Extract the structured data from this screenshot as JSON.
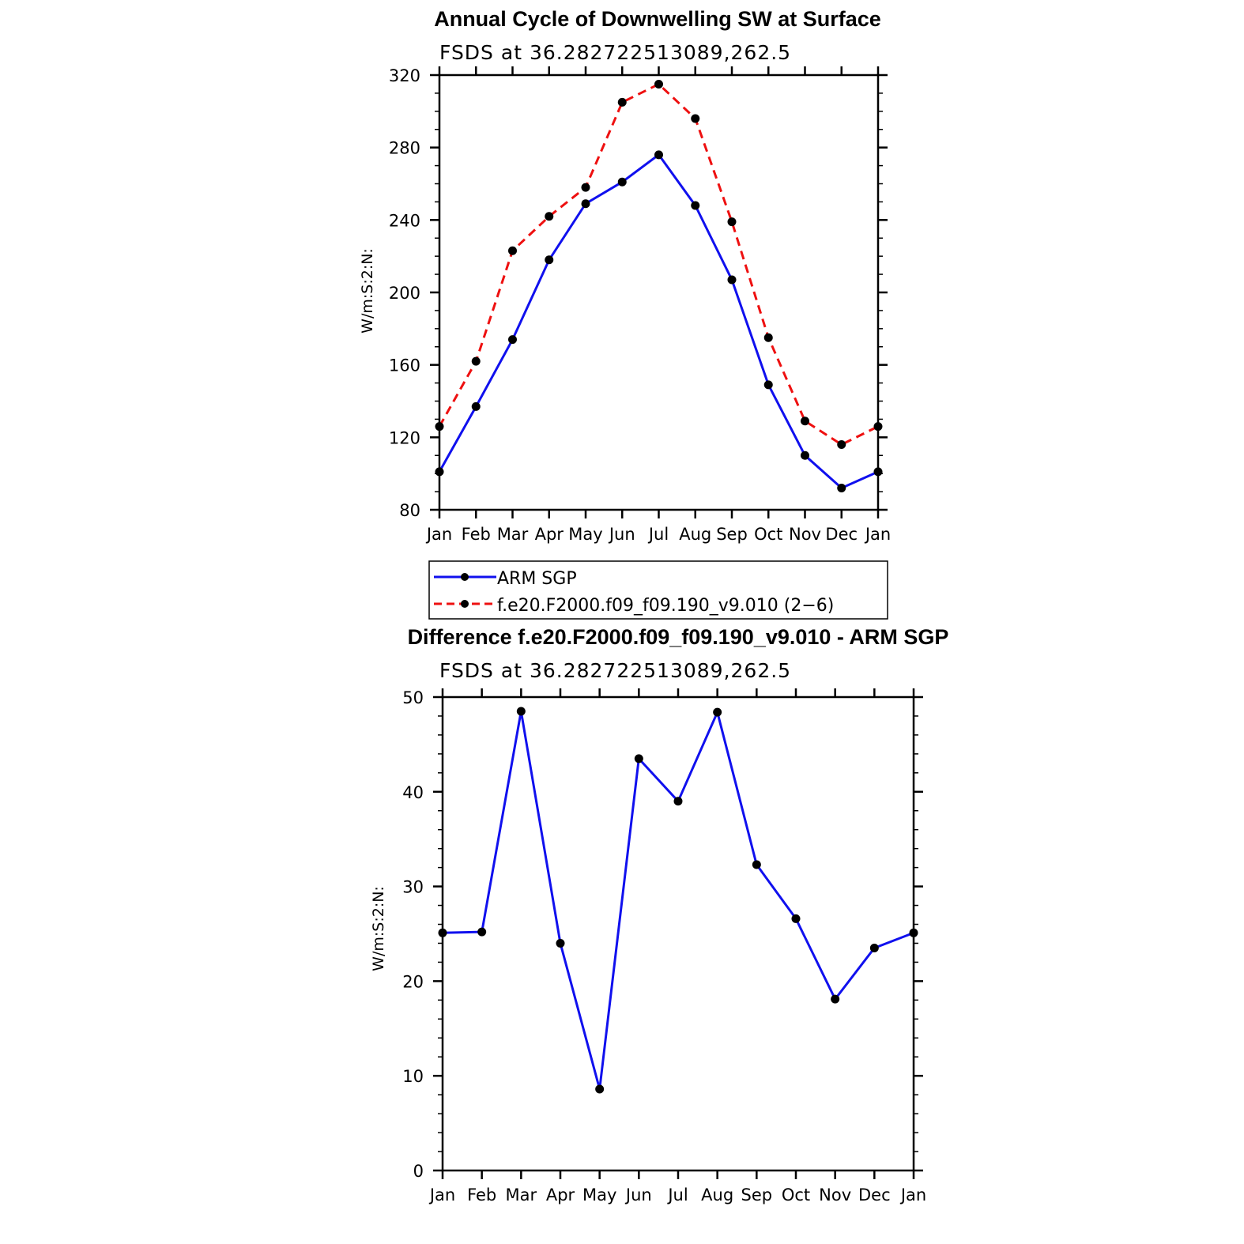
{
  "colors": {
    "series_obs": "#1010ee",
    "series_model": "#ee1010",
    "marker": "#000000"
  },
  "chart_data": [
    {
      "type": "line",
      "title": "Annual Cycle of Downwelling SW at Surface",
      "subtitle": "FSDS at 36.282722513089,262.5",
      "xlabel": "",
      "ylabel": "W/m:S:2:N:",
      "categories": [
        "Jan",
        "Feb",
        "Mar",
        "Apr",
        "May",
        "Jun",
        "Jul",
        "Aug",
        "Sep",
        "Oct",
        "Nov",
        "Dec",
        "Jan"
      ],
      "ylim": [
        80,
        320
      ],
      "yticks": [
        80,
        120,
        160,
        200,
        240,
        280,
        320
      ],
      "series": [
        {
          "name": "ARM SGP",
          "style": "solid",
          "values": [
            101,
            137,
            174,
            218,
            249,
            261,
            276,
            248,
            207,
            149,
            110,
            92,
            101
          ]
        },
        {
          "name": "f.e20.F2000.f09_f09.190_v9.010 (2−6)",
          "style": "dashed",
          "values": [
            126,
            162,
            223,
            242,
            258,
            305,
            315,
            296,
            239,
            175,
            129,
            116,
            126
          ]
        }
      ],
      "legend": "below"
    },
    {
      "type": "line",
      "title": "Difference f.e20.F2000.f09_f09.190_v9.010 - ARM SGP",
      "subtitle": "FSDS at 36.282722513089,262.5",
      "xlabel": "",
      "ylabel": "W/m:S:2:N:",
      "categories": [
        "Jan",
        "Feb",
        "Mar",
        "Apr",
        "May",
        "Jun",
        "Jul",
        "Aug",
        "Sep",
        "Oct",
        "Nov",
        "Dec",
        "Jan"
      ],
      "ylim": [
        0,
        50
      ],
      "yticks": [
        0,
        10,
        20,
        30,
        40,
        50
      ],
      "series": [
        {
          "name": "Difference",
          "style": "solid",
          "values": [
            25.1,
            25.2,
            48.5,
            24.0,
            8.6,
            43.5,
            39.0,
            48.4,
            32.3,
            26.6,
            18.1,
            23.5,
            25.1
          ]
        }
      ]
    }
  ]
}
